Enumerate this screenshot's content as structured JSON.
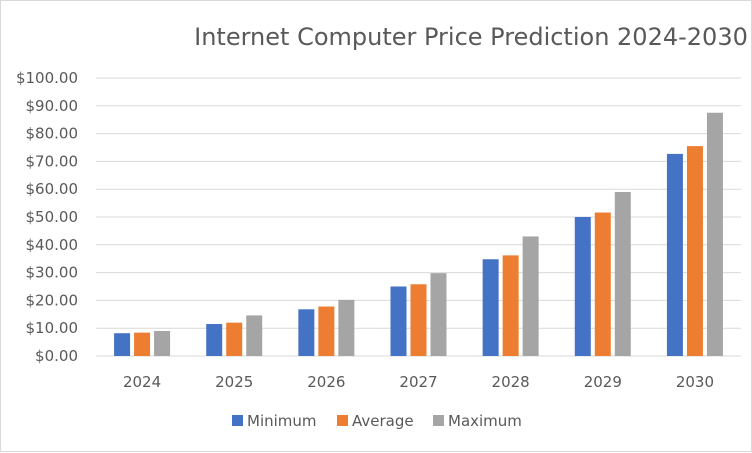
{
  "chart_data": {
    "type": "bar",
    "title": "Internet Computer Price Prediction 2024-2030",
    "xlabel": "",
    "ylabel": "",
    "categories": [
      "2024",
      "2025",
      "2026",
      "2027",
      "2028",
      "2029",
      "2030"
    ],
    "series": [
      {
        "name": "Minimum",
        "color": "#4472c4",
        "values": [
          8.2,
          11.5,
          16.8,
          25.0,
          34.8,
          50.0,
          72.7
        ]
      },
      {
        "name": "Average",
        "color": "#ed7d31",
        "values": [
          8.4,
          12.0,
          17.8,
          25.8,
          36.2,
          51.6,
          75.5
        ]
      },
      {
        "name": "Maximum",
        "color": "#a5a5a5",
        "values": [
          9.0,
          14.6,
          20.2,
          29.8,
          43.0,
          59.0,
          87.5
        ]
      }
    ],
    "ylim": [
      0,
      100
    ],
    "yticks": [
      0,
      10,
      20,
      30,
      40,
      50,
      60,
      70,
      80,
      90,
      100
    ],
    "ytick_labels": [
      "$0.00",
      "$10.00",
      "$20.00",
      "$30.00",
      "$40.00",
      "$50.00",
      "$60.00",
      "$70.00",
      "$80.00",
      "$90.00",
      "$100.00"
    ],
    "grid": true,
    "legend_position": "bottom"
  }
}
